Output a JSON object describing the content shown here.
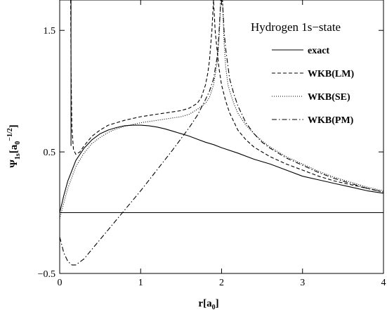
{
  "chart_data": {
    "type": "line",
    "title": "Hydrogen 1s−state",
    "xlabel": {
      "main": "r[a",
      "sub": "0",
      "close": "]"
    },
    "ylabel": {
      "psi": "Ψ",
      "sub": "1s",
      "open": "[a",
      "sub2": "0",
      "sup": "−1/2",
      "close": "]"
    },
    "xlim": [
      0,
      4
    ],
    "ylim": [
      -0.5,
      1.75
    ],
    "x_ticks": [
      0,
      1,
      2,
      3,
      4
    ],
    "x_tick_labels": [
      "0",
      "1",
      "2",
      "3",
      "4"
    ],
    "y_ticks": [
      -0.5,
      0.5,
      1.5
    ],
    "y_tick_labels": [
      "−0.5",
      "0.5",
      "1.5"
    ],
    "legend_position": "top-right",
    "series": [
      {
        "name": "exact",
        "dash": "solid",
        "x": [
          0,
          0.05,
          0.1,
          0.2,
          0.3,
          0.4,
          0.5,
          0.6,
          0.7,
          0.8,
          0.9,
          1.0,
          1.1,
          1.2,
          1.3,
          1.4,
          1.5,
          1.6,
          1.7,
          1.8,
          1.9,
          2.0,
          2.2,
          2.4,
          2.6,
          2.8,
          3.0,
          3.2,
          3.4,
          3.6,
          3.8,
          4.0
        ],
        "y": [
          0.0,
          0.14,
          0.26,
          0.43,
          0.53,
          0.6,
          0.65,
          0.68,
          0.7,
          0.715,
          0.72,
          0.72,
          0.715,
          0.705,
          0.69,
          0.67,
          0.65,
          0.63,
          0.605,
          0.58,
          0.56,
          0.535,
          0.49,
          0.44,
          0.4,
          0.35,
          0.3,
          0.27,
          0.24,
          0.21,
          0.18,
          0.16
        ]
      },
      {
        "name": "WKB(LM)",
        "dash": "dashed",
        "x": [
          0.135,
          0.14,
          0.15,
          0.17,
          0.2,
          0.25,
          0.3,
          0.4,
          0.5,
          0.6,
          0.8,
          1.0,
          1.2,
          1.4,
          1.5,
          1.6,
          1.7,
          1.75,
          1.8,
          1.83,
          1.85,
          1.88,
          1.9,
          1.92,
          1.95,
          1.97,
          2.0,
          2.05,
          2.1,
          2.2,
          2.3,
          2.4,
          2.5,
          2.6,
          2.8,
          3.0,
          3.2,
          3.4,
          3.6,
          3.8,
          4.0
        ],
        "y": [
          1.75,
          1.2,
          0.7,
          0.52,
          0.48,
          0.5,
          0.55,
          0.63,
          0.68,
          0.72,
          0.76,
          0.79,
          0.81,
          0.83,
          0.84,
          0.86,
          0.9,
          0.95,
          1.05,
          1.15,
          1.25,
          1.5,
          1.75,
          1.5,
          1.3,
          1.18,
          1.05,
          0.92,
          0.82,
          0.68,
          0.6,
          0.54,
          0.5,
          0.46,
          0.4,
          0.35,
          0.3,
          0.26,
          0.23,
          0.2,
          0.17
        ]
      },
      {
        "name": "WKB(SE)",
        "dash": "dotted",
        "x": [
          0,
          0.05,
          0.1,
          0.2,
          0.3,
          0.4,
          0.5,
          0.6,
          0.7,
          0.8,
          0.9,
          1.0,
          1.2,
          1.4,
          1.5,
          1.6,
          1.7,
          1.8,
          1.85,
          1.9,
          1.95,
          1.97,
          1.98,
          1.99,
          2.01,
          2.02,
          2.03,
          2.05,
          2.08,
          2.1,
          2.15,
          2.2,
          2.3,
          2.4,
          2.5,
          2.6,
          2.8,
          3.0,
          3.2,
          3.4,
          3.6,
          3.8,
          4.0
        ],
        "y": [
          -0.05,
          0.08,
          0.2,
          0.38,
          0.49,
          0.57,
          0.62,
          0.66,
          0.69,
          0.71,
          0.725,
          0.74,
          0.76,
          0.78,
          0.79,
          0.81,
          0.85,
          0.9,
          0.95,
          1.05,
          1.25,
          1.45,
          1.6,
          1.75,
          1.75,
          1.6,
          1.4,
          1.2,
          1.05,
          1.0,
          0.9,
          0.82,
          0.72,
          0.65,
          0.59,
          0.54,
          0.46,
          0.4,
          0.34,
          0.29,
          0.25,
          0.21,
          0.18
        ]
      },
      {
        "name": "WKB(PM)",
        "dash": "dashdot",
        "x": [
          0,
          0.05,
          0.1,
          0.15,
          0.2,
          0.3,
          0.4,
          0.5,
          0.6,
          0.7,
          0.8,
          0.9,
          1.0,
          1.2,
          1.4,
          1.6,
          1.7,
          1.8,
          1.85,
          1.9,
          1.95,
          1.97,
          1.99,
          2.01,
          2.03,
          2.05,
          2.08,
          2.1,
          2.15,
          2.2,
          2.3,
          2.4,
          2.5,
          2.6,
          2.8,
          3.0,
          3.2,
          3.4,
          3.6,
          3.8,
          4.0
        ],
        "y": [
          -0.2,
          -0.33,
          -0.4,
          -0.43,
          -0.43,
          -0.38,
          -0.3,
          -0.22,
          -0.14,
          -0.06,
          0.02,
          0.1,
          0.18,
          0.35,
          0.52,
          0.7,
          0.8,
          0.93,
          1.0,
          1.1,
          1.3,
          1.5,
          1.75,
          1.75,
          1.5,
          1.35,
          1.2,
          1.1,
          0.98,
          0.88,
          0.74,
          0.65,
          0.58,
          0.53,
          0.45,
          0.39,
          0.33,
          0.28,
          0.24,
          0.2,
          0.17
        ]
      },
      {
        "name": "",
        "dash": "solid",
        "x": [
          0.14,
          0.14
        ],
        "y": [
          1.75,
          0.55
        ]
      }
    ]
  }
}
